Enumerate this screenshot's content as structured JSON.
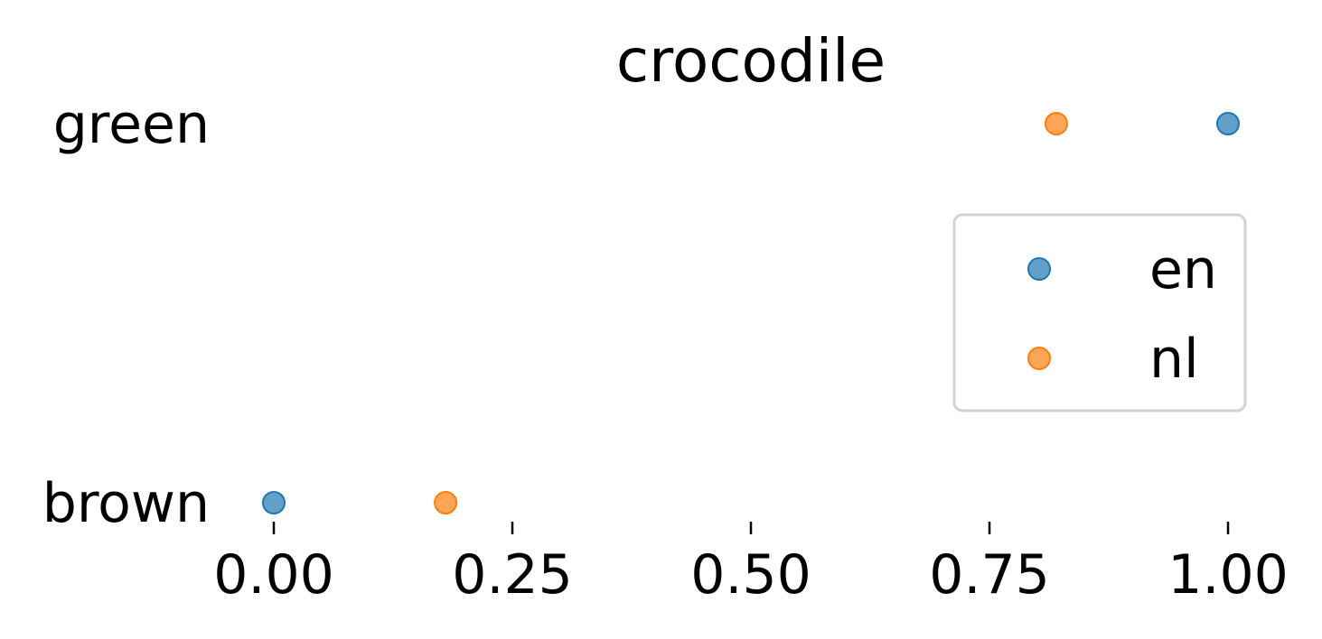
{
  "chart_data": {
    "type": "scatter",
    "title": "crocodile",
    "xlabel": "",
    "ylabel": "",
    "xlim": [
      0.0,
      1.0
    ],
    "x_ticks": [
      "0.00",
      "0.25",
      "0.50",
      "0.75",
      "1.00"
    ],
    "categories": [
      "brown",
      "green"
    ],
    "series": [
      {
        "name": "en",
        "color": "#1f77b4",
        "values": [
          0.0,
          1.0
        ]
      },
      {
        "name": "nl",
        "color": "#ff7f0e",
        "values": [
          0.18,
          0.82
        ]
      }
    ],
    "legend": {
      "placement": "right",
      "entries": [
        "en",
        "nl"
      ]
    },
    "grid": false
  }
}
